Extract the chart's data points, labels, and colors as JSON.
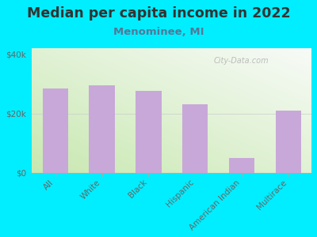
{
  "title": "Median per capita income in 2022",
  "subtitle": "Menominee, MI",
  "categories": [
    "All",
    "White",
    "Black",
    "Hispanic",
    "American Indian",
    "Multirace"
  ],
  "values": [
    28500,
    29500,
    27500,
    23000,
    5000,
    21000
  ],
  "bar_color": "#c8a8d8",
  "background_color": "#00eeff",
  "title_color": "#333333",
  "subtitle_color": "#557799",
  "axis_color": "#aaaaaa",
  "tick_color": "#666666",
  "ylim": [
    0,
    42000
  ],
  "yticks": [
    0,
    20000,
    40000
  ],
  "ytick_labels": [
    "$0",
    "$20k",
    "$40k"
  ],
  "watermark": "City-Data.com",
  "title_fontsize": 12.5,
  "subtitle_fontsize": 9.5,
  "tick_fontsize": 7.5,
  "grad_color_bottom_left": "#c8e8b0",
  "grad_color_top_right": "#f8fbf8"
}
